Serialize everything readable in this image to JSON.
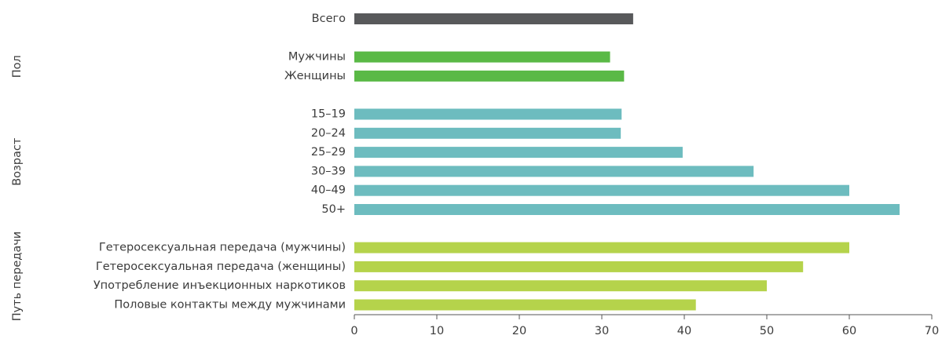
{
  "chart_data": {
    "type": "bar",
    "orientation": "horizontal",
    "groups": [
      {
        "color": "#58595b",
        "categories": [
          "Всего"
        ],
        "values": [
          33.8
        ]
      },
      {
        "name": "Пол",
        "color": "#5ab946",
        "categories": [
          "Мужчины",
          "Женщины"
        ],
        "values": [
          31.0,
          32.7
        ]
      },
      {
        "name": "Возраст",
        "color": "#6dbcbf",
        "categories": [
          "15–19",
          "20–24",
          "25–29",
          "30–39",
          "40–49",
          "50+"
        ],
        "values": [
          32.4,
          32.3,
          39.8,
          48.4,
          60.0,
          66.1
        ]
      },
      {
        "name": "Путь передачи",
        "color": "#b5d34b",
        "categories": [
          "Гетеросексуальная передача (мужчины)",
          "Гетеросексуальная передача (женщины)",
          "Употребление инъекционных наркотиков",
          "Половые контакты между мужчинами"
        ],
        "values": [
          60.0,
          54.4,
          50.0,
          41.4
        ]
      }
    ],
    "xlim": [
      0,
      70
    ],
    "xticks": [
      0,
      10,
      20,
      30,
      40,
      50,
      60,
      70
    ],
    "grid": false
  }
}
